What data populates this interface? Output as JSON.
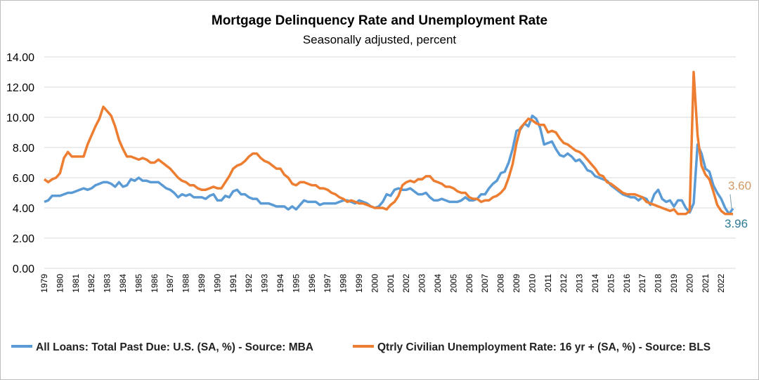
{
  "chart_data": {
    "type": "line",
    "title": "Mortgage Delinquency Rate and Unemployment Rate",
    "subtitle": "Seasonally adjusted, percent",
    "frequency": "quarterly",
    "x_start": "1979Q1",
    "x_end": "2022Q4",
    "x_tick_labels": [
      "1979",
      "1980",
      "1981",
      "1982",
      "1983",
      "1984",
      "1985",
      "1986",
      "1987",
      "1988",
      "1989",
      "1990",
      "1991",
      "1992",
      "1993",
      "1994",
      "1995",
      "1996",
      "1997",
      "1998",
      "1999",
      "2000",
      "2001",
      "2002",
      "2003",
      "2004",
      "2005",
      "2006",
      "2007",
      "2008",
      "2009",
      "2010",
      "2011",
      "2012",
      "2013",
      "2014",
      "2015",
      "2016",
      "2017",
      "2018",
      "2019",
      "2020",
      "2021",
      "2022"
    ],
    "y_tick_labels": [
      "0.00",
      "2.00",
      "4.00",
      "6.00",
      "8.00",
      "10.00",
      "12.00",
      "14.00"
    ],
    "ylim": [
      0,
      14
    ],
    "grid": "horizontal",
    "legend": "bottom",
    "series": [
      {
        "name": "All Loans: Total Past Due: U.S. (SA, %) - Source: MBA",
        "color": "#5B9BD5",
        "end_label": "3.96",
        "end_label_color": "#2E7A96",
        "values": [
          4.4,
          4.5,
          4.8,
          4.8,
          4.8,
          4.9,
          5.0,
          5.0,
          5.1,
          5.2,
          5.3,
          5.2,
          5.3,
          5.5,
          5.6,
          5.7,
          5.7,
          5.6,
          5.4,
          5.7,
          5.4,
          5.5,
          5.9,
          5.8,
          6.0,
          5.8,
          5.8,
          5.7,
          5.7,
          5.7,
          5.5,
          5.3,
          5.2,
          5.0,
          4.7,
          4.9,
          4.8,
          4.9,
          4.7,
          4.7,
          4.7,
          4.6,
          4.8,
          4.9,
          4.5,
          4.5,
          4.8,
          4.7,
          5.1,
          5.2,
          4.9,
          4.9,
          4.7,
          4.6,
          4.6,
          4.3,
          4.3,
          4.3,
          4.2,
          4.1,
          4.1,
          4.1,
          3.9,
          4.1,
          3.9,
          4.2,
          4.5,
          4.4,
          4.4,
          4.4,
          4.2,
          4.3,
          4.3,
          4.3,
          4.3,
          4.4,
          4.5,
          4.5,
          4.4,
          4.3,
          4.5,
          4.4,
          4.3,
          4.1,
          4.0,
          4.1,
          4.4,
          4.9,
          4.8,
          5.2,
          5.3,
          5.2,
          5.2,
          5.3,
          5.1,
          4.9,
          4.9,
          5.0,
          4.7,
          4.5,
          4.5,
          4.6,
          4.5,
          4.4,
          4.4,
          4.4,
          4.5,
          4.7,
          4.5,
          4.5,
          4.6,
          4.9,
          4.9,
          5.3,
          5.6,
          5.8,
          6.3,
          6.4,
          7.0,
          7.9,
          9.1,
          9.2,
          9.6,
          9.4,
          10.1,
          9.9,
          9.3,
          8.2,
          8.3,
          8.4,
          7.9,
          7.5,
          7.4,
          7.6,
          7.4,
          7.1,
          7.2,
          6.9,
          6.5,
          6.4,
          6.1,
          6.0,
          5.9,
          5.8,
          5.5,
          5.3,
          5.1,
          4.9,
          4.8,
          4.7,
          4.7,
          4.5,
          4.7,
          4.6,
          4.2,
          4.9,
          5.2,
          4.6,
          4.4,
          4.5,
          4.1,
          4.5,
          4.5,
          4.0,
          3.7,
          4.3,
          8.2,
          7.6,
          6.6,
          6.4,
          5.5,
          5.0,
          4.6,
          4.0,
          3.6,
          3.96
        ]
      },
      {
        "name": "Qtrly Civilian Unemployment Rate: 16 yr + (SA, %) - Source: BLS",
        "color": "#ED7D31",
        "end_label": "3.60",
        "end_label_color": "#D29A66",
        "values": [
          5.9,
          5.7,
          5.9,
          6.0,
          6.3,
          7.3,
          7.7,
          7.4,
          7.4,
          7.4,
          7.4,
          8.2,
          8.8,
          9.4,
          9.9,
          10.7,
          10.4,
          10.1,
          9.4,
          8.5,
          7.9,
          7.4,
          7.4,
          7.3,
          7.2,
          7.3,
          7.2,
          7.0,
          7.0,
          7.2,
          7.0,
          6.8,
          6.6,
          6.3,
          6.0,
          5.8,
          5.7,
          5.5,
          5.5,
          5.3,
          5.2,
          5.2,
          5.3,
          5.4,
          5.3,
          5.3,
          5.7,
          6.1,
          6.6,
          6.8,
          6.9,
          7.1,
          7.4,
          7.6,
          7.6,
          7.3,
          7.1,
          7.0,
          6.8,
          6.6,
          6.6,
          6.2,
          6.0,
          5.6,
          5.5,
          5.7,
          5.7,
          5.6,
          5.5,
          5.5,
          5.3,
          5.3,
          5.2,
          5.0,
          4.9,
          4.7,
          4.6,
          4.4,
          4.5,
          4.4,
          4.3,
          4.3,
          4.2,
          4.1,
          4.0,
          4.0,
          4.0,
          3.9,
          4.2,
          4.4,
          4.8,
          5.5,
          5.7,
          5.8,
          5.7,
          5.9,
          5.9,
          6.1,
          6.1,
          5.8,
          5.7,
          5.6,
          5.4,
          5.4,
          5.3,
          5.1,
          5.0,
          5.0,
          4.7,
          4.6,
          4.6,
          4.4,
          4.5,
          4.5,
          4.7,
          4.8,
          5.0,
          5.3,
          6.0,
          6.9,
          8.3,
          9.3,
          9.6,
          9.9,
          9.8,
          9.6,
          9.5,
          9.5,
          9.0,
          9.1,
          9.0,
          8.6,
          8.3,
          8.2,
          8.0,
          7.8,
          7.7,
          7.5,
          7.2,
          6.9,
          6.6,
          6.2,
          6.1,
          5.7,
          5.6,
          5.4,
          5.2,
          5.0,
          4.9,
          4.9,
          4.9,
          4.8,
          4.7,
          4.4,
          4.3,
          4.2,
          4.1,
          4.0,
          3.9,
          3.8,
          3.9,
          3.6,
          3.6,
          3.6,
          3.8,
          13.0,
          8.8,
          6.8,
          6.2,
          5.9,
          5.1,
          4.2,
          3.8,
          3.6,
          3.6,
          3.6
        ]
      }
    ]
  }
}
